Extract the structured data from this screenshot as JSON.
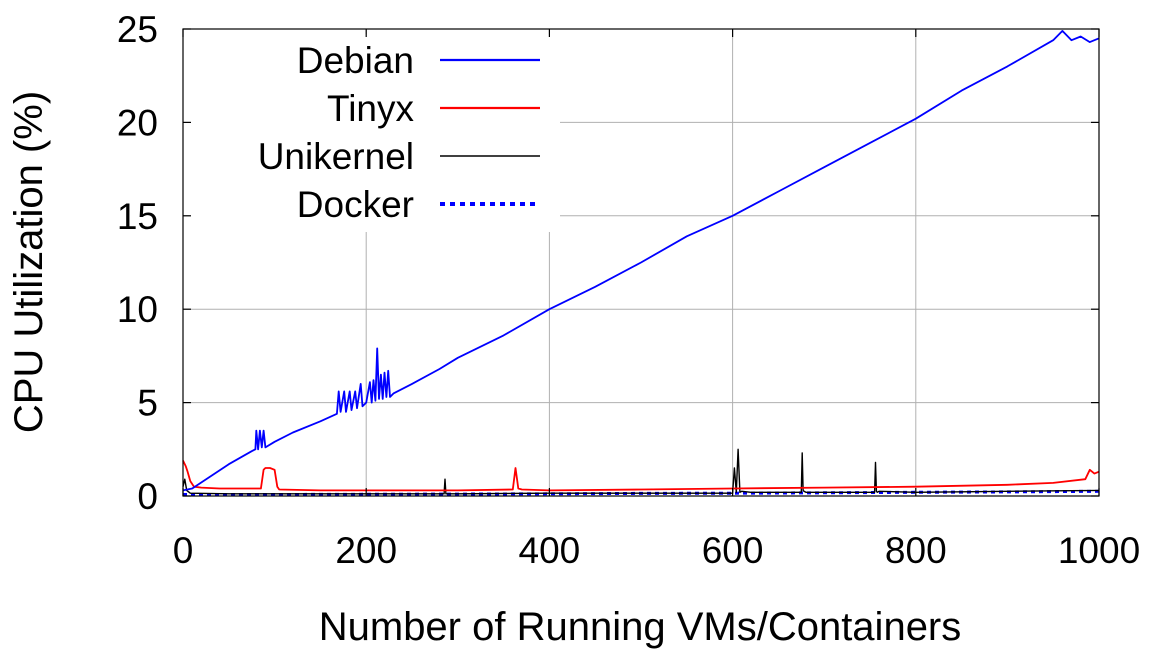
{
  "chart_data": {
    "type": "line",
    "xlabel": "Number of Running VMs/Containers",
    "ylabel": "CPU Utilization (%)",
    "xlim": [
      0,
      1000
    ],
    "ylim": [
      0,
      25
    ],
    "x_ticks": [
      "0",
      "200",
      "400",
      "600",
      "800",
      "1000"
    ],
    "y_ticks": [
      "0",
      "5",
      "10",
      "15",
      "20",
      "25"
    ],
    "grid": true,
    "legend_position": "top-left",
    "series": [
      {
        "name": "Debian",
        "color": "#0000ff",
        "style": "solid",
        "x": [
          0,
          10,
          50,
          75,
          79,
          80,
          82,
          84,
          86,
          88,
          90,
          100,
          120,
          150,
          168,
          170,
          172,
          176,
          178,
          182,
          184,
          188,
          190,
          194,
          196,
          200,
          204,
          206,
          208,
          210,
          212,
          214,
          216,
          218,
          220,
          222,
          224,
          226,
          230,
          250,
          280,
          300,
          350,
          400,
          450,
          500,
          550,
          600,
          650,
          700,
          750,
          800,
          850,
          900,
          950,
          960,
          970,
          980,
          990,
          1000
        ],
        "y": [
          0.3,
          0.4,
          1.7,
          2.4,
          2.5,
          3.5,
          2.5,
          3.5,
          2.6,
          3.5,
          2.6,
          2.9,
          3.4,
          4.0,
          4.4,
          5.6,
          4.5,
          5.6,
          4.5,
          5.6,
          4.6,
          5.6,
          4.7,
          6.0,
          4.8,
          5.0,
          6.1,
          5.0,
          6.2,
          5.1,
          7.9,
          5.2,
          6.5,
          5.2,
          6.6,
          5.3,
          6.7,
          5.3,
          5.5,
          6.0,
          6.8,
          7.4,
          8.6,
          10.0,
          11.2,
          12.5,
          13.9,
          15.0,
          16.3,
          17.6,
          18.9,
          20.2,
          21.7,
          23.0,
          24.4,
          24.9,
          24.4,
          24.6,
          24.3,
          24.5
        ]
      },
      {
        "name": "Tinyx",
        "color": "#ff0000",
        "style": "solid",
        "x": [
          0,
          3,
          5,
          8,
          12,
          20,
          40,
          60,
          85,
          88,
          90,
          95,
          100,
          103,
          105,
          150,
          200,
          250,
          300,
          360,
          363,
          366,
          370,
          400,
          500,
          600,
          700,
          800,
          900,
          950,
          985,
          990,
          995,
          1000
        ],
        "y": [
          1.9,
          1.6,
          1.3,
          0.8,
          0.5,
          0.45,
          0.4,
          0.4,
          0.4,
          1.4,
          1.5,
          1.5,
          1.4,
          0.5,
          0.35,
          0.3,
          0.3,
          0.3,
          0.3,
          0.35,
          1.5,
          0.4,
          0.35,
          0.3,
          0.35,
          0.4,
          0.45,
          0.5,
          0.6,
          0.7,
          0.9,
          1.4,
          1.2,
          1.3
        ]
      },
      {
        "name": "Unikernel",
        "color": "#000000",
        "style": "solid",
        "x": [
          0,
          2,
          4,
          8,
          50,
          100,
          200,
          285,
          286,
          287,
          300,
          400,
          500,
          600,
          602,
          604,
          606,
          608,
          610,
          620,
          675,
          676,
          677,
          678,
          680,
          700,
          755,
          756,
          757,
          758,
          760,
          800,
          900,
          1000
        ],
        "y": [
          0.5,
          0.9,
          0.3,
          0.15,
          0.12,
          0.12,
          0.12,
          0.12,
          0.9,
          0.12,
          0.12,
          0.15,
          0.15,
          0.15,
          1.5,
          0.2,
          2.5,
          0.2,
          0.25,
          0.2,
          0.2,
          2.3,
          0.3,
          0.25,
          0.2,
          0.2,
          0.2,
          1.8,
          0.25,
          0.2,
          0.25,
          0.2,
          0.25,
          0.3
        ]
      },
      {
        "name": "Docker",
        "color": "#0000ff",
        "style": "dotted",
        "x": [
          0,
          100,
          200,
          300,
          400,
          500,
          600,
          700,
          800,
          900,
          1000
        ],
        "y": [
          0.08,
          0.08,
          0.09,
          0.1,
          0.12,
          0.14,
          0.15,
          0.17,
          0.2,
          0.22,
          0.25
        ]
      }
    ]
  }
}
